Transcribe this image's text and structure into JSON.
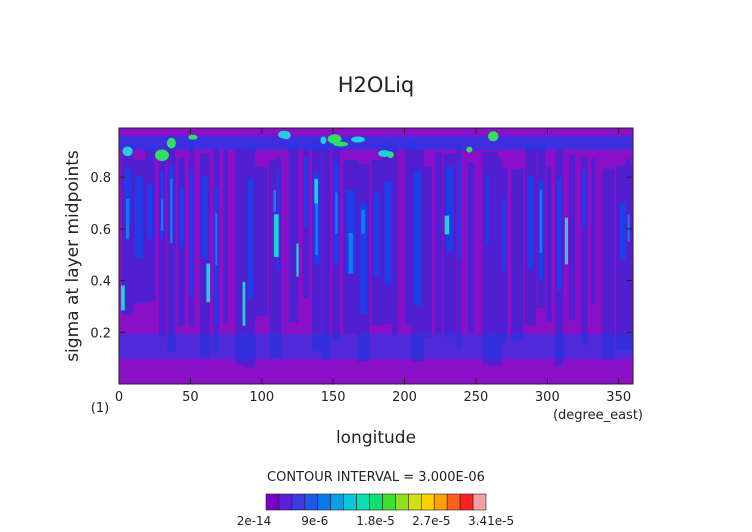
{
  "chart_data": {
    "type": "heatmap",
    "title": "H2OLiq",
    "xlabel": "longitude",
    "xunits": "(degree_east)",
    "ylabel": "sigma at layer midpoints",
    "yunits": "(1)",
    "xlim": [
      0,
      360
    ],
    "ylim": [
      0.99,
      0.0
    ],
    "x_ticks": [
      "0",
      "50",
      "100",
      "150",
      "200",
      "250",
      "300",
      "350"
    ],
    "x_tick_values": [
      0,
      50,
      100,
      150,
      200,
      250,
      300,
      350
    ],
    "y_ticks": [
      "0.2",
      "0.4",
      "0.6",
      "0.8"
    ],
    "y_tick_values": [
      0.2,
      0.4,
      0.6,
      0.8
    ],
    "contour_interval_text": "CONTOUR INTERVAL = 3.000E-06",
    "colorbar": {
      "labels": [
        "2e-14",
        "9e-6",
        "1.8e-5",
        "2.7e-5",
        "3.41e-5"
      ],
      "colors": [
        "#7a00c8",
        "#5a1fd6",
        "#3a3ae0",
        "#1f57e6",
        "#0a78e8",
        "#0aa0e8",
        "#08c8d8",
        "#08e0b0",
        "#10e070",
        "#40e030",
        "#90e020",
        "#d0e010",
        "#ffd000",
        "#ffa000",
        "#ff6020",
        "#ff2020",
        "#f0a0a0"
      ]
    },
    "field": {
      "background_level": "#8a10c8",
      "low_level": "#5020d0",
      "mid_level": "#1e3ce8",
      "high_level": "#1a78f0",
      "peak_level": "#22d0d8",
      "max_level": "#30e060"
    }
  }
}
